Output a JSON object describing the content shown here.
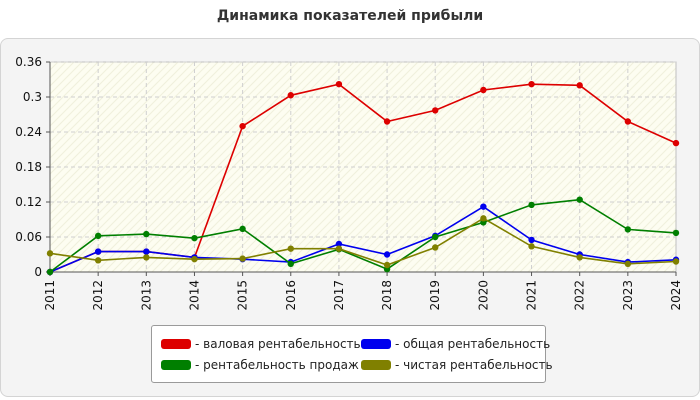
{
  "chart_data": {
    "type": "line",
    "title": "Динамика показателей прибыли",
    "x": [
      2011,
      2012,
      2013,
      2014,
      2015,
      2016,
      2017,
      2018,
      2019,
      2020,
      2021,
      2022,
      2023,
      2024
    ],
    "ylim": [
      0,
      0.36
    ],
    "yticks": [
      "0",
      "0.06",
      "0.12",
      "0.18",
      "0.24",
      "0.3",
      "0.36"
    ],
    "grid": true,
    "legend_position": "bottom",
    "series": [
      {
        "name": "- валовая рентабельность",
        "color": "#dd0000",
        "values": [
          0,
          0.035,
          0.035,
          0.025,
          0.25,
          0.303,
          0.322,
          0.258,
          0.277,
          0.312,
          0.322,
          0.32,
          0.258,
          0.221
        ]
      },
      {
        "name": "- общая рентабельность",
        "color": "#0000ee",
        "values": [
          0,
          0.035,
          0.035,
          0.025,
          0.022,
          0.017,
          0.048,
          0.03,
          0.062,
          0.112,
          0.055,
          0.03,
          0.017,
          0.021
        ]
      },
      {
        "name": "- рентабельность продаж",
        "color": "#007f00",
        "values": [
          0,
          0.062,
          0.065,
          0.058,
          0.074,
          0.014,
          0.039,
          0.005,
          0.06,
          0.085,
          0.115,
          0.124,
          0.073,
          0.067
        ]
      },
      {
        "name": "- чистая рентабельность",
        "color": "#808000",
        "values": [
          0.032,
          0.02,
          0.025,
          0.022,
          0.023,
          0.04,
          0.04,
          0.012,
          0.042,
          0.092,
          0.044,
          0.025,
          0.014,
          0.018
        ]
      }
    ]
  }
}
